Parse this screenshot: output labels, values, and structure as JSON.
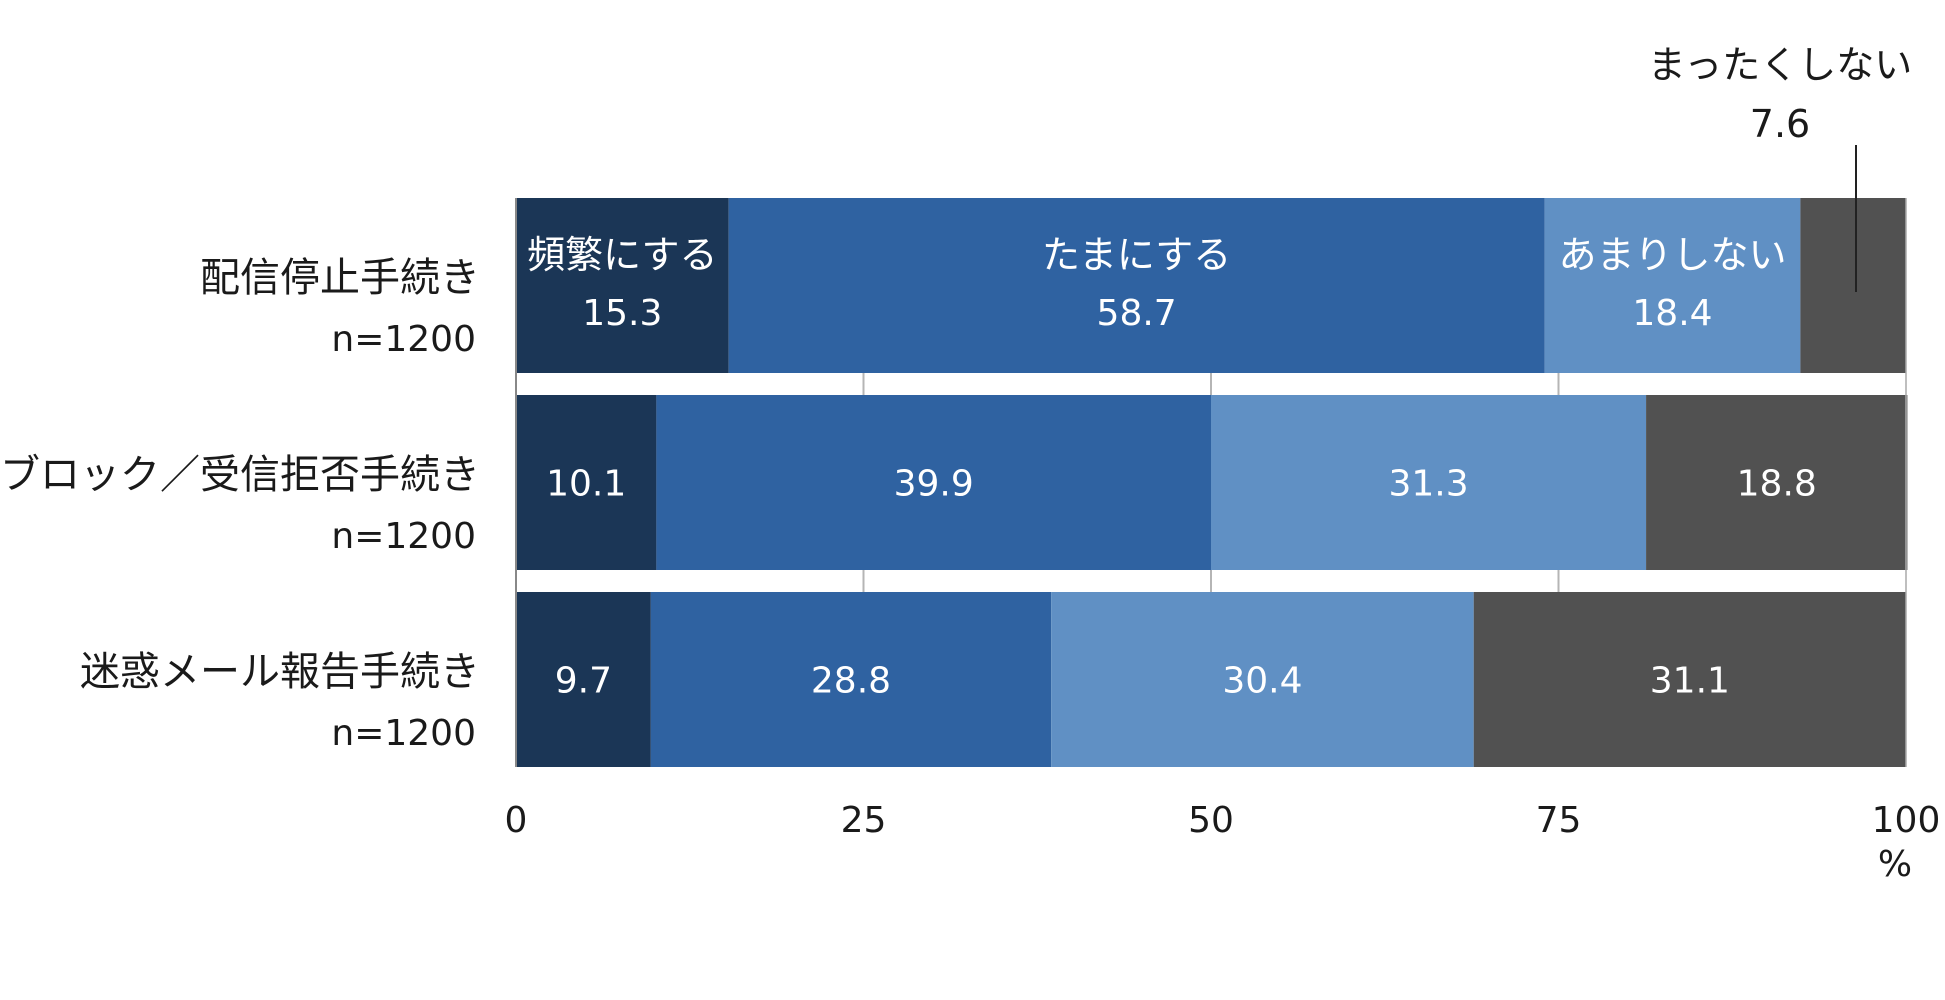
{
  "chart_data": {
    "type": "bar",
    "orientation": "horizontal",
    "stacked": true,
    "categories": [
      "配信停止手続き",
      "ブロック／受信拒否手続き",
      "迷惑メール報告手続き"
    ],
    "sample_sizes": [
      "n=1200",
      "n=1200",
      "n=1200"
    ],
    "series": [
      {
        "name": "頻繁にする",
        "color": "#1b3656",
        "values": [
          15.3,
          10.1,
          9.7
        ]
      },
      {
        "name": "たまにする",
        "color": "#2f62a1",
        "values": [
          58.7,
          39.9,
          28.8
        ]
      },
      {
        "name": "あまりしない",
        "color": "#6090c4",
        "values": [
          18.4,
          31.3,
          30.4
        ]
      },
      {
        "name": "まったくしない",
        "color": "#515151",
        "values": [
          7.6,
          18.8,
          31.1
        ]
      }
    ],
    "value_labels": [
      [
        "15.3",
        "58.7",
        "18.4",
        "7.6"
      ],
      [
        "10.1",
        "39.9",
        "31.3",
        "18.8"
      ],
      [
        "9.7",
        "28.8",
        "30.4",
        "31.1"
      ]
    ],
    "xlim": [
      0,
      100
    ],
    "xticks": [
      0,
      25,
      50,
      75,
      100
    ],
    "xtick_labels": [
      "0",
      "25",
      "50",
      "75",
      "100"
    ],
    "xlabel": "%",
    "grid": true,
    "legend": "inline-first-bar"
  }
}
